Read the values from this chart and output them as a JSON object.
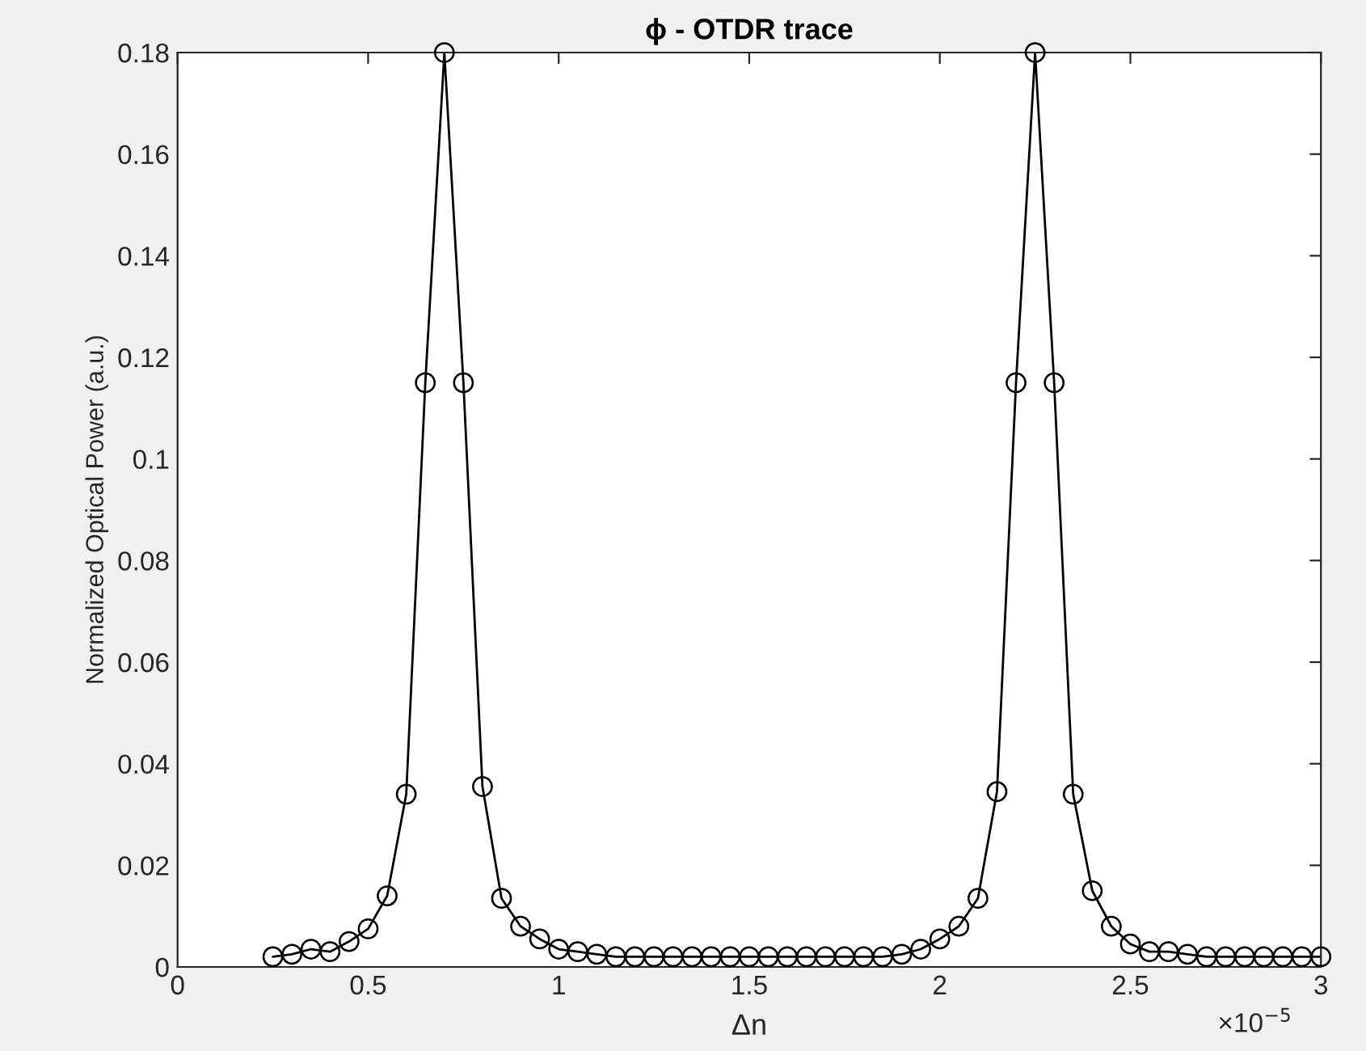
{
  "chart_data": {
    "type": "line",
    "title": "ϕ - OTDR trace",
    "xlabel": "Δn",
    "ylabel": "Normalized Optical Power (a.u.)",
    "annotations": [
      "×10$^{−5}$"
    ],
    "x": [
      0.25,
      0.3,
      0.35,
      0.4,
      0.45,
      0.5,
      0.55,
      0.6,
      0.65,
      0.7,
      0.75,
      0.8,
      0.85,
      0.9,
      0.95,
      1,
      1.05,
      1.1,
      1.15,
      1.2,
      1.25,
      1.3,
      1.35,
      1.4,
      1.45,
      1.5,
      1.55,
      1.6,
      1.65,
      1.7,
      1.75,
      1.8,
      1.85,
      1.9,
      1.95,
      2,
      2.05,
      2.1,
      2.15,
      2.2,
      2.25,
      2.3,
      2.35,
      2.4,
      2.45,
      2.5,
      2.55,
      2.6,
      2.65,
      2.7,
      2.75,
      2.8,
      2.85,
      2.9,
      2.95,
      3
    ],
    "series": [
      {
        "color": "#000000",
        "values": [
          0.002,
          0.0025,
          0.0035,
          0.003,
          0.005,
          0.0075,
          0.014,
          0.034,
          0.115,
          0.18,
          0.115,
          0.0355,
          0.0135,
          0.008,
          0.0055,
          0.0035,
          0.003,
          0.0025,
          0.002,
          0.002,
          0.002,
          0.002,
          0.002,
          0.002,
          0.002,
          0.002,
          0.002,
          0.002,
          0.002,
          0.002,
          0.002,
          0.002,
          0.002,
          0.0025,
          0.0035,
          0.0055,
          0.008,
          0.0135,
          0.0345,
          0.115,
          0.18,
          0.115,
          0.034,
          0.015,
          0.008,
          0.0045,
          0.003,
          0.003,
          0.0025,
          0.002,
          0.002,
          0.002,
          0.002,
          0.002,
          0.002,
          0.002
        ]
      }
    ],
    "xlim": [
      0,
      3
    ],
    "ylim": [
      0,
      0.18
    ],
    "xticks": [
      0,
      0.5,
      1,
      1.5,
      2,
      2.5,
      3
    ],
    "yticks": [
      0,
      0.02,
      0.04,
      0.06,
      0.08,
      0.1,
      0.12,
      0.14,
      0.16,
      0.18
    ],
    "marker": "circle",
    "line_style": "solid",
    "grid": false,
    "legend": false
  }
}
